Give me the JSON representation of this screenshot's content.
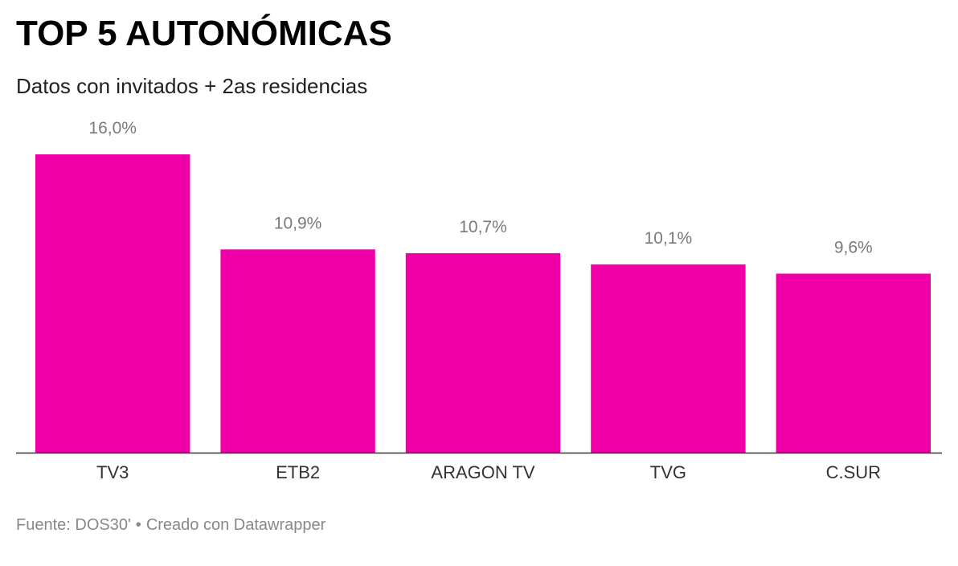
{
  "chart_data": {
    "type": "bar",
    "title": "TOP 5 AUTONÓMICAS",
    "subtitle": "Datos con invitados + 2as residencias",
    "categories": [
      "TV3",
      "ETB2",
      "ARAGON TV",
      "TVG",
      "C.SUR"
    ],
    "values": [
      16.0,
      10.9,
      10.7,
      10.1,
      9.6
    ],
    "value_labels": [
      "16,0%",
      "10,9%",
      "10,7%",
      "10,1%",
      "9,6%"
    ],
    "ylim": [
      0,
      16.0
    ],
    "grid": false,
    "bar_color": "#ee00a6",
    "value_label_color": "#7a7a7a",
    "category_label_color": "#333333",
    "axis_color": "#333333"
  },
  "footer": {
    "source": "Fuente: DOS30'",
    "separator": "•",
    "credit": "Creado con Datawrapper"
  }
}
